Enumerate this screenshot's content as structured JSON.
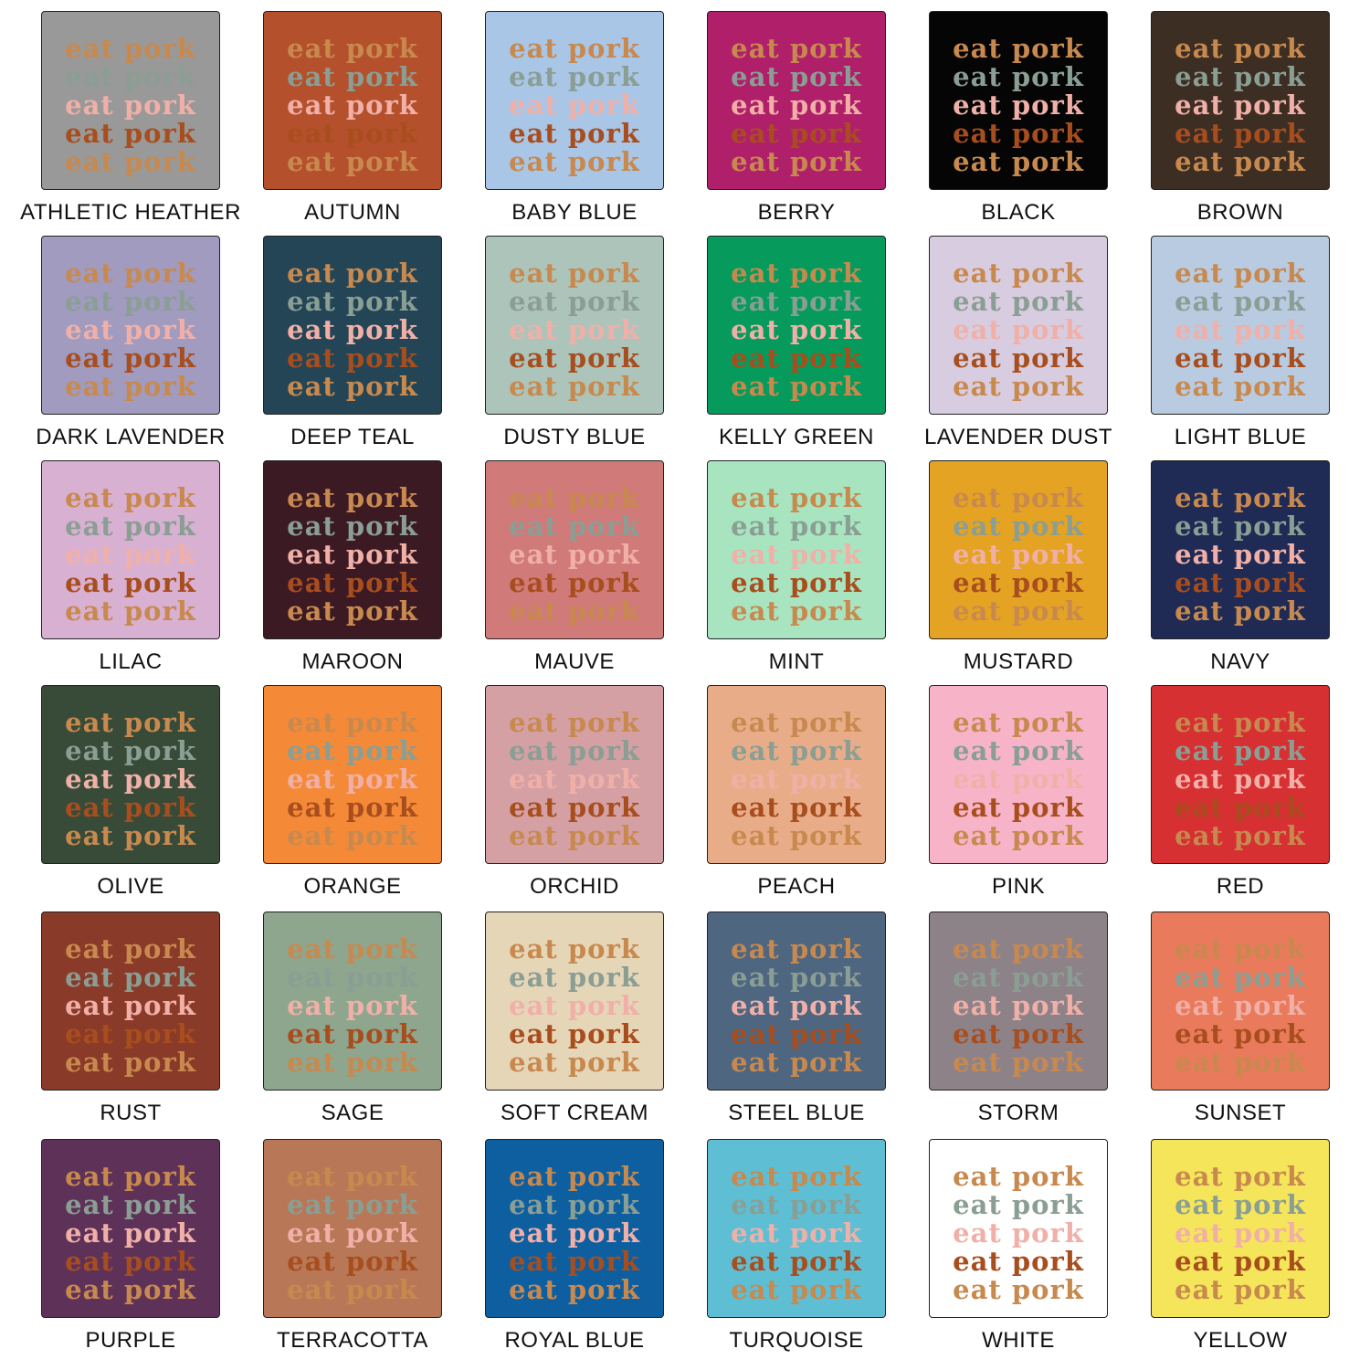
{
  "design": {
    "line": "eat pork",
    "line_colors": [
      "#c8894f",
      "#8a9e94",
      "#f0b0a8",
      "#a84e1e",
      "#c8894f"
    ]
  },
  "swatches": [
    {
      "name": "ATHLETIC HEATHER",
      "color": "#999999"
    },
    {
      "name": "AUTUMN",
      "color": "#b5502c"
    },
    {
      "name": "BABY BLUE",
      "color": "#a9c6e6"
    },
    {
      "name": "BERRY",
      "color": "#b0206a"
    },
    {
      "name": "BLACK",
      "color": "#050505"
    },
    {
      "name": "BROWN",
      "color": "#3d2e24"
    },
    {
      "name": "DARK LAVENDER",
      "color": "#a09bbf"
    },
    {
      "name": "DEEP TEAL",
      "color": "#234556"
    },
    {
      "name": "DUSTY BLUE",
      "color": "#adc4bb"
    },
    {
      "name": "KELLY GREEN",
      "color": "#069b5c"
    },
    {
      "name": "LAVENDER DUST",
      "color": "#d8cde0"
    },
    {
      "name": "LIGHT BLUE",
      "color": "#b9cbe0"
    },
    {
      "name": "LILAC",
      "color": "#d8b0d2"
    },
    {
      "name": "MAROON",
      "color": "#3b1a24"
    },
    {
      "name": "MAUVE",
      "color": "#d07a7a"
    },
    {
      "name": "MINT",
      "color": "#a8e4c0"
    },
    {
      "name": "MUSTARD",
      "color": "#e4a323"
    },
    {
      "name": "NAVY",
      "color": "#1f2a55"
    },
    {
      "name": "OLIVE",
      "color": "#384b38"
    },
    {
      "name": "ORANGE",
      "color": "#f48a38"
    },
    {
      "name": "ORCHID",
      "color": "#d4a0a4"
    },
    {
      "name": "PEACH",
      "color": "#e8ad88"
    },
    {
      "name": "PINK",
      "color": "#f7b4c8"
    },
    {
      "name": "RED",
      "color": "#d63032"
    },
    {
      "name": "RUST",
      "color": "#8a3a28"
    },
    {
      "name": "SAGE",
      "color": "#8ea58e"
    },
    {
      "name": "SOFT CREAM",
      "color": "#e6d6b8"
    },
    {
      "name": "STEEL BLUE",
      "color": "#4e6680"
    },
    {
      "name": "STORM",
      "color": "#8e8289"
    },
    {
      "name": "SUNSET",
      "color": "#e97b5c"
    },
    {
      "name": "PURPLE",
      "color": "#5e3258"
    },
    {
      "name": "TERRACOTTA",
      "color": "#b87858"
    },
    {
      "name": "ROYAL BLUE",
      "color": "#0e5fa0"
    },
    {
      "name": "TURQUOISE",
      "color": "#5ebfd4"
    },
    {
      "name": "WHITE",
      "color": "#ffffff"
    },
    {
      "name": "YELLOW",
      "color": "#f5e55a"
    }
  ]
}
